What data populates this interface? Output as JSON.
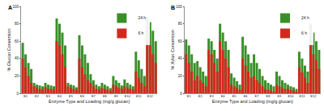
{
  "chart_data": [
    {
      "type": "bar",
      "annotations": [
        "A"
      ],
      "x_label": "Enzyme Type and Loading (mg/g glucan)",
      "y_label": "% Glucan Conversion",
      "categories": [
        null,
        "E1",
        null,
        null,
        null,
        "E2",
        null,
        null,
        null,
        "E3",
        null,
        null,
        null,
        "E4",
        null,
        null,
        null,
        "E5",
        null,
        null,
        null,
        "E6",
        null,
        null,
        null,
        "E7",
        null,
        null,
        null,
        "E8",
        null,
        null,
        null,
        "E9",
        null,
        null,
        null,
        "E10",
        null,
        null,
        null,
        "E11",
        null,
        null,
        null,
        "E12",
        null,
        null
      ],
      "series": [
        {
          "name": "24 h",
          "color": "#3b8f2a",
          "values": [
            58,
            45,
            35,
            28,
            12,
            10,
            9,
            8,
            12,
            10,
            9,
            8,
            86,
            80,
            70,
            55,
            12,
            10,
            9,
            7,
            67,
            55,
            45,
            35,
            22,
            15,
            10,
            8,
            12,
            10,
            8,
            6,
            20,
            15,
            12,
            9,
            16,
            12,
            10,
            8,
            48,
            38,
            28,
            20,
            88,
            82,
            72,
            60
          ]
        },
        {
          "name": "6 h",
          "color": "#d02a1e",
          "values": [
            40,
            30,
            20,
            12,
            8,
            6,
            5,
            4,
            7,
            5,
            5,
            4,
            60,
            55,
            45,
            30,
            8,
            6,
            5,
            4,
            40,
            30,
            22,
            15,
            12,
            8,
            5,
            4,
            6,
            5,
            4,
            3,
            10,
            8,
            6,
            5,
            8,
            6,
            5,
            4,
            25,
            18,
            12,
            8,
            62,
            55,
            45,
            35
          ]
        }
      ],
      "ylim": [
        0,
        100
      ],
      "yticks": [
        0,
        20,
        40,
        60,
        80,
        100
      ],
      "stacked": false,
      "legend": "upper right",
      "grid": false
    },
    {
      "type": "bar",
      "annotations": [
        "B"
      ],
      "x_label": "Enzyme Type and Loading (mg/g glucan)",
      "y_label": "% Xylan Conversion",
      "categories": [
        null,
        "E1",
        null,
        null,
        null,
        "E2",
        null,
        null,
        null,
        "E3",
        null,
        null,
        null,
        "E4",
        null,
        null,
        null,
        "E5",
        null,
        null,
        null,
        "E6",
        null,
        null,
        null,
        "E7",
        null,
        null,
        null,
        "E8",
        null,
        null,
        null,
        "E9",
        null,
        null,
        null,
        "E10",
        null,
        null,
        null,
        "E11",
        null,
        null,
        null,
        "E12",
        null,
        null
      ],
      "series": [
        {
          "name": "24 h",
          "color": "#3b8f2a",
          "values": [
            62,
            55,
            45,
            35,
            37,
            30,
            25,
            20,
            63,
            60,
            50,
            40,
            80,
            70,
            60,
            50,
            23,
            18,
            14,
            10,
            65,
            55,
            45,
            35,
            45,
            35,
            28,
            20,
            15,
            12,
            10,
            8,
            25,
            20,
            15,
            12,
            10,
            8,
            7,
            5,
            48,
            40,
            32,
            25,
            80,
            70,
            60,
            50
          ]
        },
        {
          "name": "6 h",
          "color": "#d02a1e",
          "values": [
            45,
            35,
            25,
            15,
            20,
            15,
            12,
            8,
            50,
            45,
            35,
            25,
            60,
            50,
            40,
            30,
            10,
            8,
            6,
            4,
            40,
            32,
            25,
            18,
            20,
            15,
            12,
            8,
            5,
            4,
            3,
            2,
            10,
            8,
            6,
            5,
            5,
            4,
            3,
            2,
            30,
            24,
            18,
            12,
            55,
            45,
            38,
            28
          ]
        }
      ],
      "ylim": [
        0,
        100
      ],
      "yticks": [
        0,
        20,
        40,
        60,
        80,
        100
      ],
      "stacked": false,
      "legend": "upper right",
      "grid": false
    }
  ]
}
